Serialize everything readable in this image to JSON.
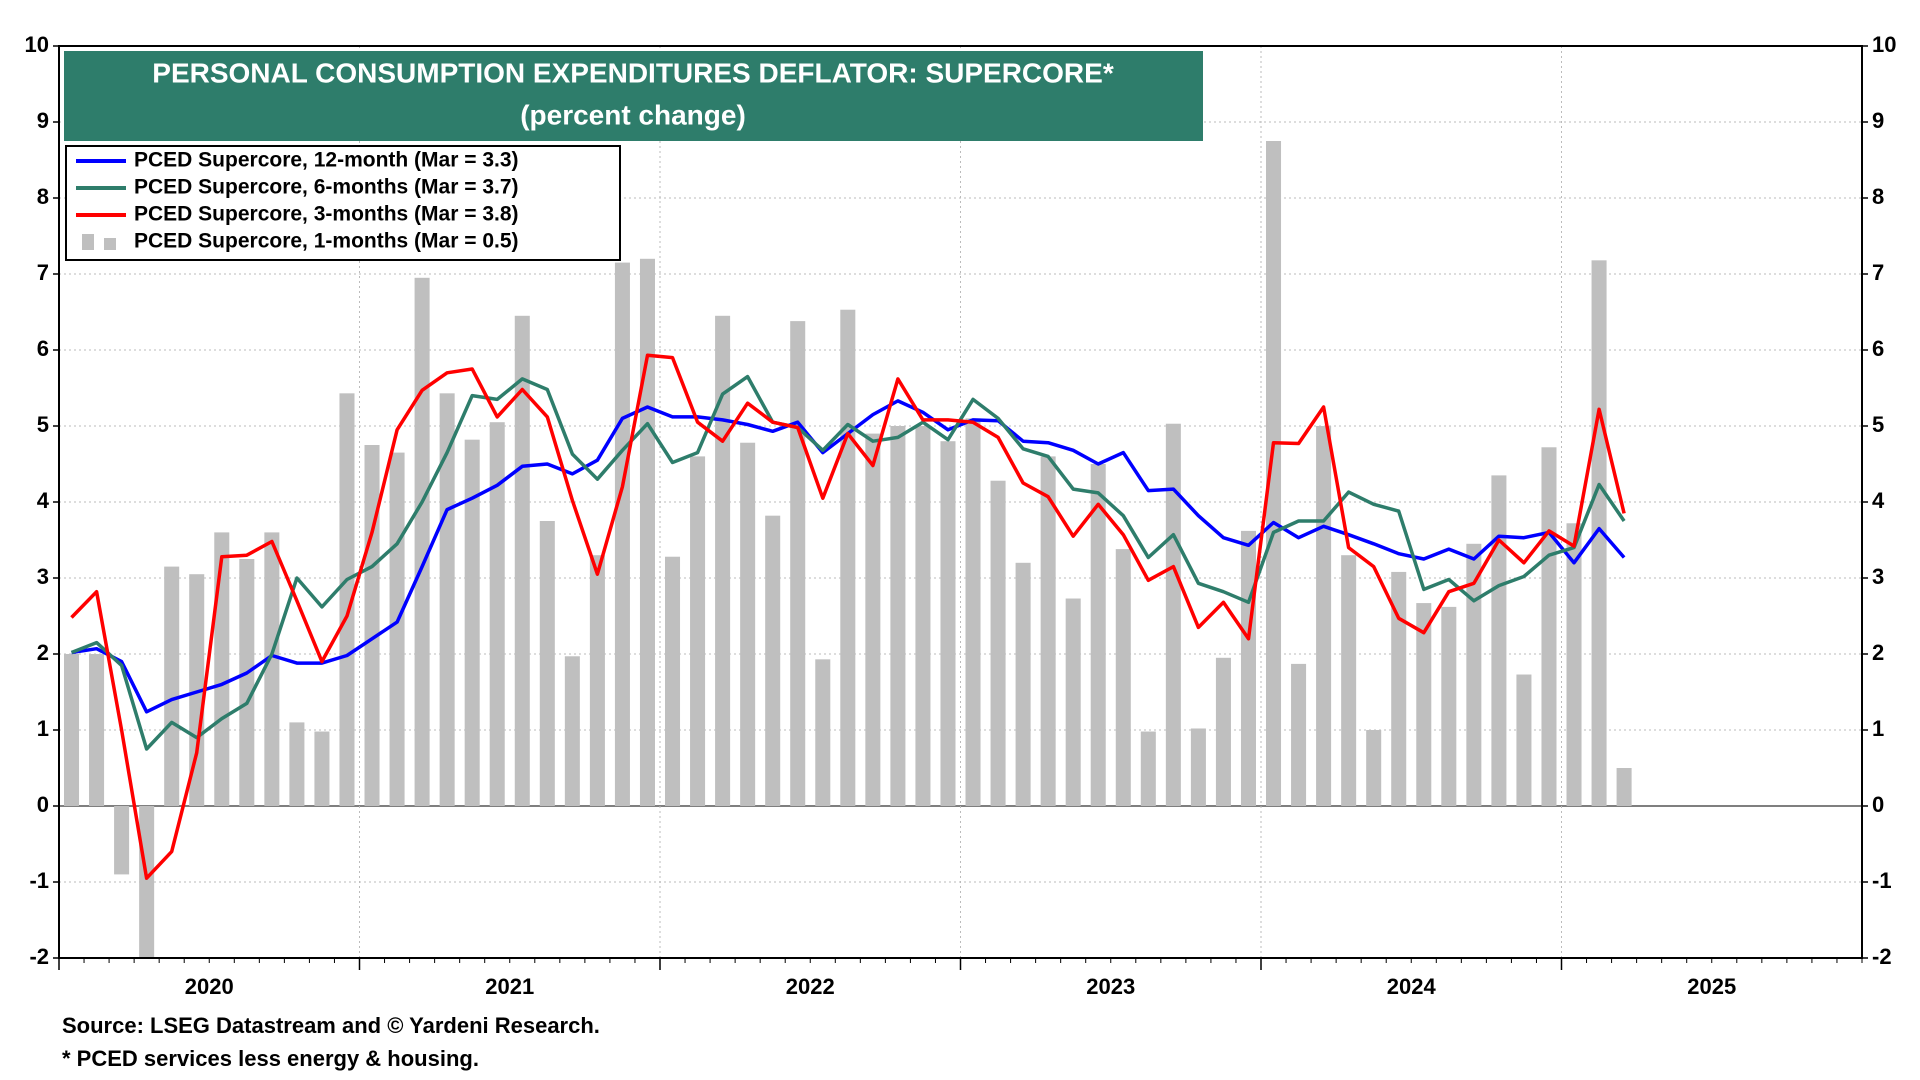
{
  "chart_data": {
    "type": "line",
    "title": "PERSONAL CONSUMPTION EXPENDITURES DEFLATOR: SUPERCORE*",
    "subtitle": "(percent change)",
    "source": "Source: LSEG Datastream and © Yardeni Research.",
    "note": "* PCED services less energy & housing.",
    "x": [
      "2020-01",
      "2020-02",
      "2020-03",
      "2020-04",
      "2020-05",
      "2020-06",
      "2020-07",
      "2020-08",
      "2020-09",
      "2020-10",
      "2020-11",
      "2020-12",
      "2021-01",
      "2021-02",
      "2021-03",
      "2021-04",
      "2021-05",
      "2021-06",
      "2021-07",
      "2021-08",
      "2021-09",
      "2021-10",
      "2021-11",
      "2021-12",
      "2022-01",
      "2022-02",
      "2022-03",
      "2022-04",
      "2022-05",
      "2022-06",
      "2022-07",
      "2022-08",
      "2022-09",
      "2022-10",
      "2022-11",
      "2022-12",
      "2023-01",
      "2023-02",
      "2023-03",
      "2023-04",
      "2023-05",
      "2023-06",
      "2023-07",
      "2023-08",
      "2023-09",
      "2023-10",
      "2023-11",
      "2023-12",
      "2024-01",
      "2024-02",
      "2024-03",
      "2024-04",
      "2024-05",
      "2024-06",
      "2024-07",
      "2024-08",
      "2024-09",
      "2024-10",
      "2024-11",
      "2024-12",
      "2025-01",
      "2025-02",
      "2025-03"
    ],
    "xlim": [
      "2020-01",
      "2025-12"
    ],
    "xticks": [
      2020,
      2021,
      2022,
      2023,
      2024,
      2025
    ],
    "ylim": [
      -2,
      10
    ],
    "yticks": [
      -2,
      -1,
      0,
      1,
      2,
      3,
      4,
      5,
      6,
      7,
      8,
      9,
      10
    ],
    "y2lim": [
      -2,
      10
    ],
    "y2ticks": [
      -2,
      -1,
      0,
      1,
      2,
      3,
      4,
      5,
      6,
      7,
      8,
      9,
      10
    ],
    "grid": true,
    "legend": "upper left",
    "series": [
      {
        "name": "PCED Supercore, 12-month (Mar = 3.3)",
        "type": "line",
        "color": "#0000ff",
        "values": [
          2.02,
          2.07,
          1.9,
          1.24,
          1.4,
          1.5,
          1.6,
          1.75,
          1.98,
          1.88,
          1.88,
          1.98,
          2.2,
          2.42,
          3.15,
          3.9,
          4.05,
          4.22,
          4.47,
          4.5,
          4.37,
          4.55,
          5.1,
          5.25,
          5.12,
          5.12,
          5.08,
          5.02,
          4.93,
          5.05,
          4.65,
          4.9,
          5.15,
          5.33,
          5.18,
          4.95,
          5.08,
          5.07,
          4.8,
          4.78,
          4.68,
          4.5,
          4.65,
          4.15,
          4.17,
          3.82,
          3.53,
          3.43,
          3.73,
          3.53,
          3.68,
          3.57,
          3.45,
          3.32,
          3.25,
          3.38,
          3.25,
          3.55,
          3.53,
          3.6,
          3.2,
          3.65,
          3.27
        ]
      },
      {
        "name": "PCED Supercore, 6-months (Mar = 3.7)",
        "type": "line",
        "color": "#2e7d6b",
        "values": [
          2.02,
          2.15,
          1.85,
          0.75,
          1.1,
          0.9,
          1.15,
          1.35,
          2.0,
          3.0,
          2.62,
          2.98,
          3.15,
          3.45,
          4.0,
          4.65,
          5.4,
          5.35,
          5.62,
          5.48,
          4.63,
          4.3,
          4.68,
          5.03,
          4.52,
          4.65,
          5.42,
          5.65,
          5.05,
          4.98,
          4.68,
          5.02,
          4.8,
          4.85,
          5.05,
          4.82,
          5.35,
          5.1,
          4.7,
          4.6,
          4.17,
          4.12,
          3.82,
          3.27,
          3.57,
          2.93,
          2.82,
          2.68,
          3.6,
          3.75,
          3.75,
          4.13,
          3.97,
          3.88,
          2.85,
          2.98,
          2.7,
          2.9,
          3.02,
          3.3,
          3.4,
          4.23,
          3.75
        ]
      },
      {
        "name": "PCED Supercore, 3-months (Mar = 3.8)",
        "type": "line",
        "color": "#ff0000",
        "values": [
          2.48,
          2.82,
          1.0,
          -0.95,
          -0.6,
          0.7,
          3.28,
          3.3,
          3.48,
          2.7,
          1.9,
          2.5,
          3.6,
          4.95,
          5.47,
          5.7,
          5.75,
          5.12,
          5.48,
          5.12,
          4.02,
          3.05,
          4.2,
          5.93,
          5.9,
          5.05,
          4.8,
          5.3,
          5.05,
          4.98,
          4.05,
          4.9,
          4.48,
          5.62,
          5.08,
          5.08,
          5.05,
          4.85,
          4.25,
          4.07,
          3.55,
          3.97,
          3.57,
          2.97,
          3.15,
          2.35,
          2.68,
          2.2,
          4.78,
          4.77,
          5.25,
          3.4,
          3.15,
          2.47,
          2.28,
          2.82,
          2.93,
          3.5,
          3.2,
          3.62,
          3.42,
          5.22,
          3.85
        ]
      },
      {
        "name": "PCED Supercore, 1-months (Mar = 0.5)",
        "type": "bar",
        "color": "#bfbfbf",
        "values": [
          2.0,
          2.0,
          -0.9,
          -2.0,
          3.15,
          3.05,
          3.6,
          3.25,
          3.6,
          1.1,
          0.98,
          5.43,
          4.75,
          4.65,
          6.95,
          5.43,
          4.82,
          5.05,
          6.45,
          3.75,
          1.97,
          3.3,
          7.15,
          7.2,
          3.28,
          4.6,
          6.45,
          4.78,
          3.82,
          6.38,
          1.93,
          6.53,
          4.9,
          5.0,
          5.0,
          4.8,
          5.1,
          4.28,
          3.2,
          4.6,
          2.73,
          4.5,
          3.38,
          0.98,
          5.03,
          1.02,
          1.95,
          3.62,
          8.75,
          1.87,
          5.0,
          3.3,
          1.0,
          3.08,
          2.67,
          2.62,
          3.45,
          4.35,
          1.73,
          4.72,
          3.72,
          7.18,
          0.5
        ]
      }
    ]
  }
}
